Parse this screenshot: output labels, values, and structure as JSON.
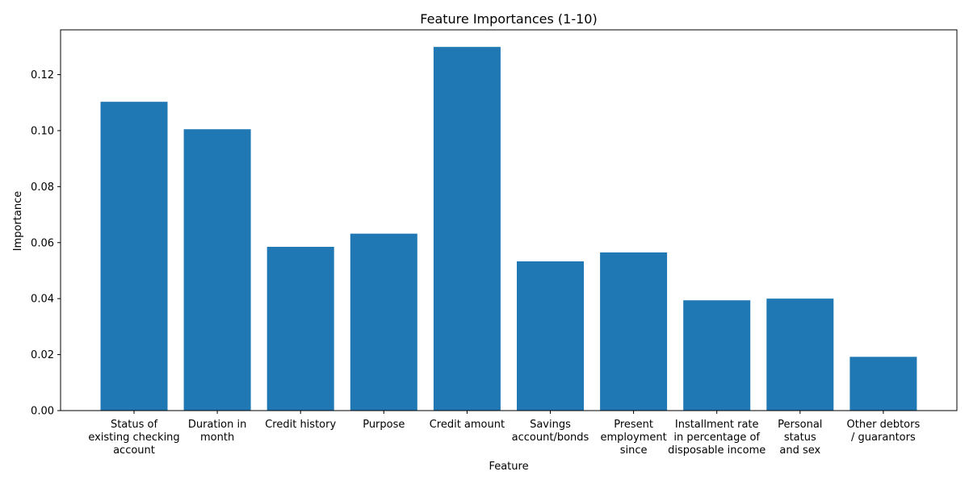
{
  "chart_data": {
    "type": "bar",
    "title": "Feature Importances (1-10)",
    "xlabel": "Feature",
    "ylabel": "Importance",
    "ylim": [
      0,
      0.136
    ],
    "yticks": [
      0.0,
      0.02,
      0.04,
      0.06,
      0.08,
      0.1,
      0.12
    ],
    "ytick_labels": [
      "0.00",
      "0.02",
      "0.04",
      "0.06",
      "0.08",
      "0.10",
      "0.12"
    ],
    "grid": false,
    "bar_color": "#1f77b4",
    "categories": [
      [
        "Status of",
        "existing checking",
        "account"
      ],
      [
        "Duration in",
        "month"
      ],
      [
        "Credit history"
      ],
      [
        "Purpose"
      ],
      [
        "Credit amount"
      ],
      [
        "Savings",
        "account/bonds"
      ],
      [
        "Present",
        "employment",
        "since"
      ],
      [
        "Installment rate",
        "in percentage of",
        "disposable income"
      ],
      [
        "Personal",
        "status",
        "and sex"
      ],
      [
        "Other debtors",
        "/ guarantors"
      ]
    ],
    "values": [
      0.1103,
      0.1005,
      0.0585,
      0.0632,
      0.1299,
      0.0533,
      0.0565,
      0.0394,
      0.04,
      0.0192
    ]
  }
}
